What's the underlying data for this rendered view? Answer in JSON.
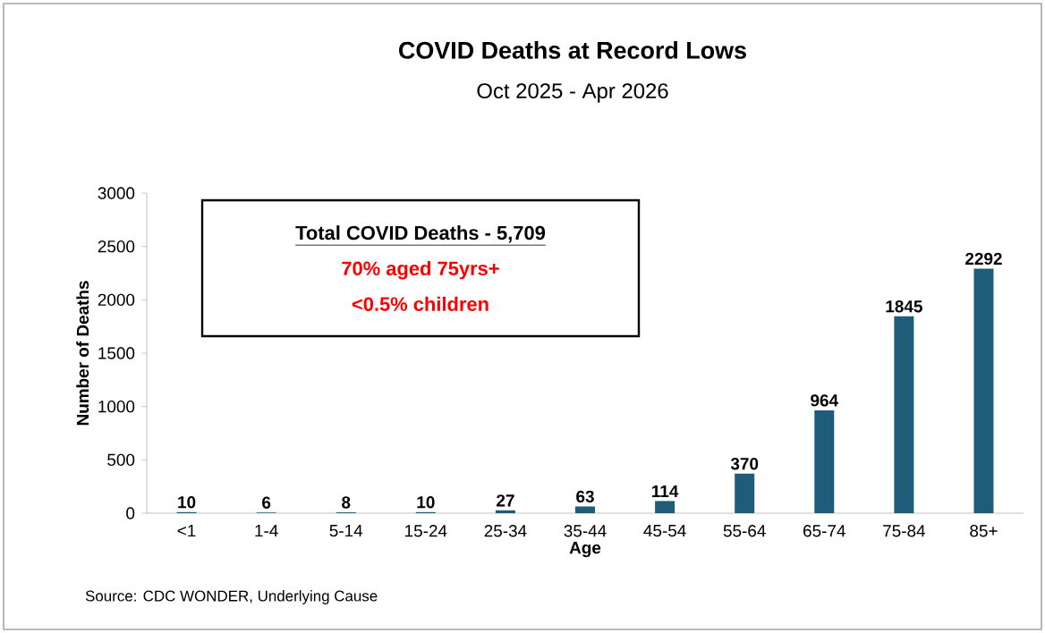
{
  "chart_data": {
    "type": "bar",
    "title": "COVID Deaths at Record Lows",
    "subtitle": "Oct 2025 - Apr 2026",
    "xlabel": "Age",
    "ylabel": "Number of Deaths",
    "categories": [
      "<1",
      "1-4",
      "5-14",
      "15-24",
      "25-34",
      "35-44",
      "45-54",
      "55-64",
      "65-74",
      "75-84",
      "85+"
    ],
    "values": [
      10,
      6,
      8,
      10,
      27,
      63,
      114,
      370,
      964,
      1845,
      2292
    ],
    "color": "#1f5c7a",
    "ylim": [
      0,
      3000
    ],
    "yticks": [
      0,
      500,
      1000,
      1500,
      2000,
      2500,
      3000
    ],
    "data_labels": true,
    "annotations": [
      "**Total COVID Deaths - 5,709**",
      "**70% aged 75yrs+**",
      "**<0.5% children**",
      "Source: CDC WONDER, Underlying Cause"
    ]
  }
}
